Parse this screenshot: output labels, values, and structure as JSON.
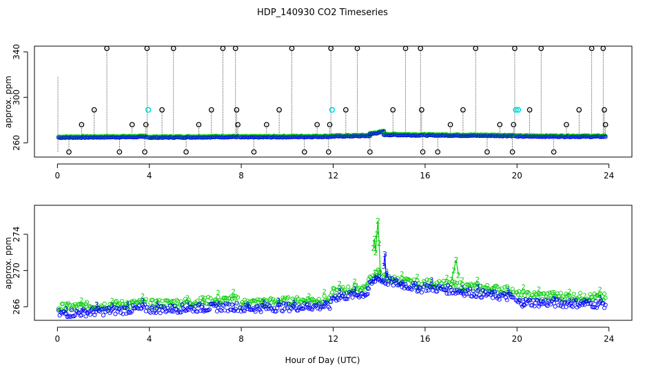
{
  "chart_data": [
    {
      "type": "scatter",
      "title": "HDP_140930  CO2 Timeseries",
      "ylabel": "approx. ppm",
      "xlabel": "",
      "xlim": [
        -1,
        25
      ],
      "ylim": [
        247.5,
        345
      ],
      "xticks": [
        0,
        4,
        8,
        12,
        16,
        20,
        24
      ],
      "yticks": [
        260,
        300,
        340
      ],
      "baseline_segments": [
        {
          "start": 0.05,
          "end": 3.9,
          "y0": 265.0,
          "y1": 265.6
        },
        {
          "start": 4.0,
          "end": 7.85,
          "y0": 265.0,
          "y1": 265.6
        },
        {
          "start": 7.95,
          "end": 11.9,
          "y0": 265.2,
          "y1": 265.8
        },
        {
          "start": 11.95,
          "end": 13.6,
          "y0": 266.0,
          "y1": 266.5
        },
        {
          "start": 13.6,
          "end": 14.2,
          "y0": 268.0,
          "y1": 270.0
        },
        {
          "start": 14.2,
          "end": 15.85,
          "y0": 267.5,
          "y1": 267.0
        },
        {
          "start": 15.95,
          "end": 19.85,
          "y0": 267.0,
          "y1": 266.5
        },
        {
          "start": 19.95,
          "end": 23.85,
          "y0": 266.0,
          "y1": 265.8
        }
      ],
      "event_markers": {
        "x": [
          0.5,
          1.05,
          1.6,
          2.15,
          2.7,
          3.25,
          3.8,
          3.85,
          3.9,
          4.55,
          5.05,
          5.6,
          6.15,
          6.7,
          7.2,
          7.75,
          7.8,
          7.85,
          8.55,
          9.1,
          9.65,
          10.2,
          10.75,
          11.3,
          11.8,
          11.85,
          11.9,
          12.55,
          13.05,
          13.6,
          14.6,
          15.15,
          15.8,
          15.85,
          15.9,
          16.55,
          17.1,
          17.65,
          18.2,
          18.7,
          19.25,
          19.8,
          19.85,
          19.9,
          20.55,
          21.05,
          21.6,
          22.15,
          22.7,
          23.25,
          23.75,
          23.8,
          23.85
        ],
        "y": [
          252,
          276,
          289,
          343,
          252,
          276,
          252,
          276,
          343,
          289,
          343,
          252,
          276,
          289,
          343,
          343,
          289,
          276,
          252,
          276,
          289,
          343,
          252,
          276,
          252,
          276,
          343,
          289,
          343,
          252,
          289,
          343,
          343,
          289,
          252,
          252,
          276,
          289,
          343,
          252,
          276,
          252,
          276,
          343,
          289,
          343,
          252,
          276,
          289,
          343,
          343,
          289,
          276
        ]
      },
      "cyan_markers": {
        "x": [
          3.95,
          11.95,
          19.95,
          20.05
        ],
        "y": [
          289,
          289,
          289,
          289
        ]
      },
      "series_colors": {
        "line": "#0000cc",
        "series_1": "#0000ff",
        "series_2": "#00cc00",
        "events": "#000000",
        "cyan": "#00dddd"
      }
    },
    {
      "type": "scatter",
      "title": "",
      "ylabel": "approx. ppm",
      "xlabel": "Hour of Day (UTC)",
      "xlim": [
        -1,
        25
      ],
      "ylim": [
        264.5,
        277.2
      ],
      "xticks": [
        0,
        4,
        8,
        12,
        16,
        20,
        24
      ],
      "yticks": [
        266,
        270,
        274
      ],
      "series": [
        {
          "name": "3",
          "marker": "circle",
          "color": "#0000ff",
          "label_char": "3",
          "segments": [
            {
              "start": 0.05,
              "end": 3.9,
              "y0": 265.2,
              "y1": 265.8
            },
            {
              "start": 4.0,
              "end": 7.85,
              "y0": 265.7,
              "y1": 266.0
            },
            {
              "start": 7.95,
              "end": 11.9,
              "y0": 265.8,
              "y1": 266.1
            },
            {
              "start": 11.95,
              "end": 13.5,
              "y0": 267.0,
              "y1": 267.5
            },
            {
              "start": 13.5,
              "end": 14.0,
              "y0": 268.0,
              "y1": 269.5
            },
            {
              "start": 14.0,
              "end": 15.85,
              "y0": 269.0,
              "y1": 268.0
            },
            {
              "start": 15.95,
              "end": 19.85,
              "y0": 268.2,
              "y1": 267.0
            },
            {
              "start": 19.95,
              "end": 23.85,
              "y0": 266.5,
              "y1": 266.3
            }
          ]
        },
        {
          "name": "2",
          "marker": "circle",
          "color": "#00cc00",
          "label_char": "2",
          "segments": [
            {
              "start": 0.05,
              "end": 3.9,
              "y0": 265.9,
              "y1": 266.4
            },
            {
              "start": 4.0,
              "end": 7.85,
              "y0": 266.3,
              "y1": 266.8
            },
            {
              "start": 7.95,
              "end": 11.9,
              "y0": 266.4,
              "y1": 266.8
            },
            {
              "start": 11.95,
              "end": 13.5,
              "y0": 267.6,
              "y1": 268.2
            },
            {
              "start": 13.5,
              "end": 14.0,
              "y0": 268.8,
              "y1": 270.0
            },
            {
              "start": 14.0,
              "end": 15.85,
              "y0": 269.3,
              "y1": 268.4
            },
            {
              "start": 15.95,
              "end": 19.85,
              "y0": 268.6,
              "y1": 267.8
            },
            {
              "start": 19.95,
              "end": 23.85,
              "y0": 267.3,
              "y1": 267.0
            }
          ]
        }
      ],
      "spikes": [
        {
          "x": [
            13.75,
            13.8,
            13.85,
            13.9,
            13.95,
            14.0,
            14.05
          ],
          "y": [
            272.5,
            273.5,
            272.0,
            274.0,
            275.5,
            273.0,
            269.8
          ],
          "series": "2"
        },
        {
          "x": [
            14.2,
            14.25,
            14.3
          ],
          "y": [
            270.5,
            271.8,
            269.5
          ],
          "series": "3"
        },
        {
          "x": [
            17.15,
            17.25,
            17.35,
            17.45
          ],
          "y": [
            269.0,
            270.0,
            271.2,
            269.5
          ],
          "series": "2"
        }
      ]
    }
  ]
}
